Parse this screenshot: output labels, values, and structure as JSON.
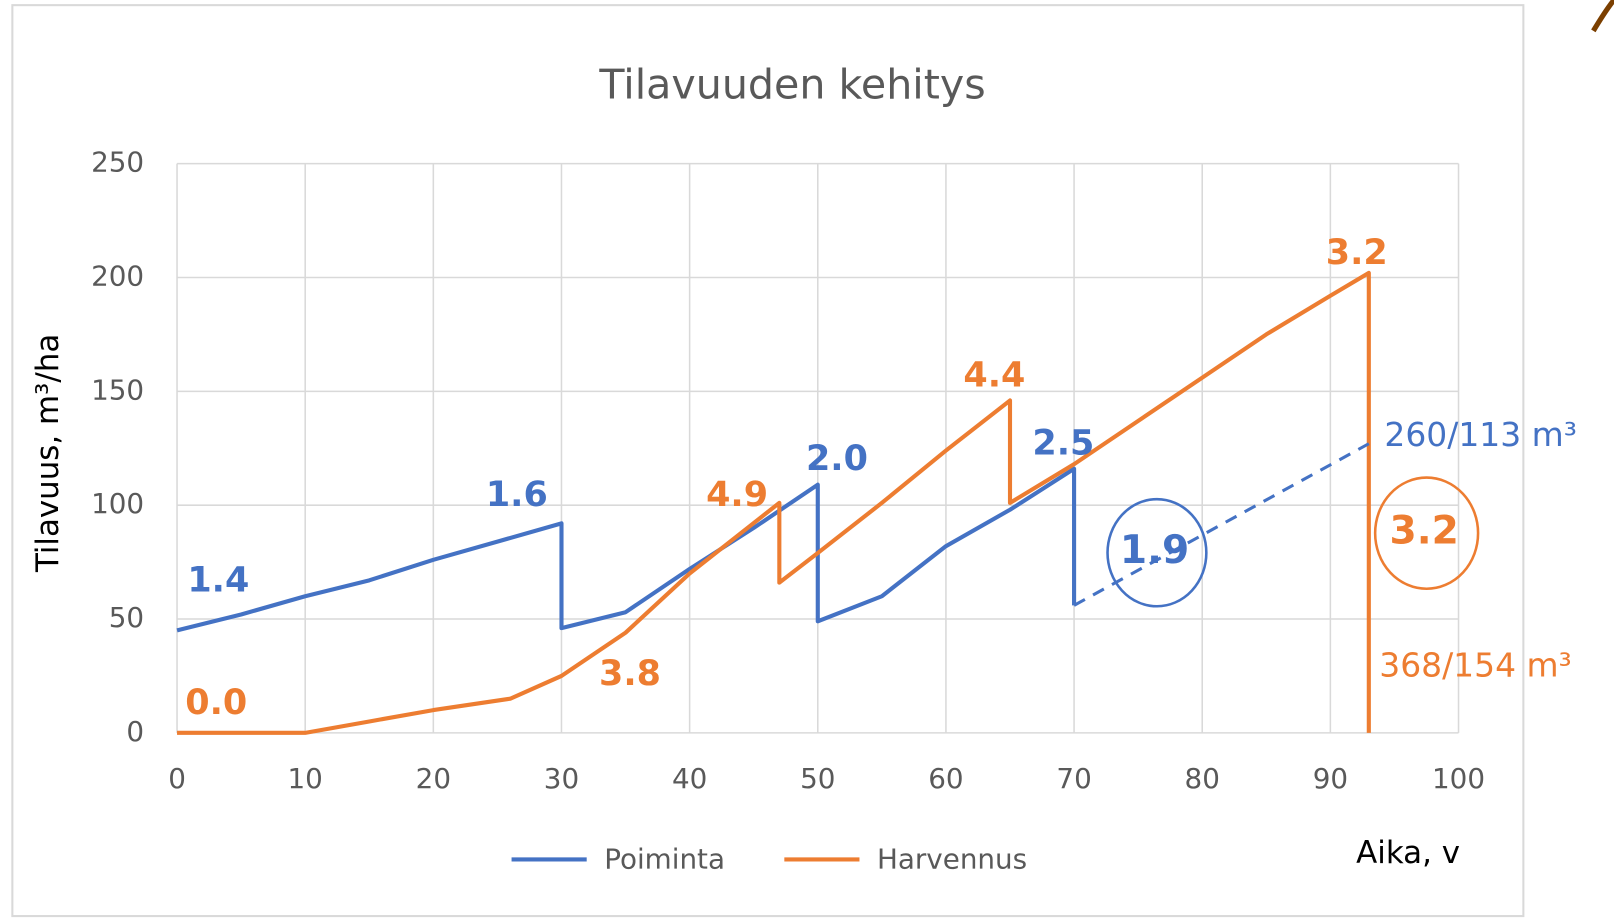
{
  "chart_data": {
    "type": "line",
    "title": "Tilavuuden kehitys",
    "y_label": "Tilavuus, m³/ha",
    "x_label": "Aika, v",
    "xlim": [
      0,
      100
    ],
    "xticks": [
      0,
      10,
      20,
      30,
      40,
      50,
      60,
      70,
      80,
      90,
      100
    ],
    "ylim": [
      0,
      250
    ],
    "yticks": [
      0,
      50,
      100,
      150,
      200,
      250
    ],
    "grid": true,
    "legend": "bottom",
    "series": [
      {
        "name": "Poiminta",
        "color": "#4472c4",
        "x": [
          0,
          5,
          10,
          15,
          20,
          25,
          30,
          30,
          35,
          40,
          45,
          50,
          50,
          55,
          60,
          65,
          70,
          70
        ],
        "values": [
          45,
          52,
          60,
          67,
          76,
          84,
          92,
          46,
          53,
          72,
          90,
          109,
          49,
          60,
          82,
          98,
          116,
          56
        ]
      },
      {
        "name": "Harvennus",
        "color": "#ed7d31",
        "x": [
          0,
          10,
          15,
          20,
          26,
          30,
          35,
          40,
          47,
          47,
          50,
          55,
          60,
          65,
          65,
          70,
          75,
          80,
          85,
          90,
          93,
          93
        ],
        "values": [
          0,
          0,
          5,
          10,
          15,
          25,
          44,
          70,
          101,
          66,
          79,
          101,
          124,
          146,
          101,
          118,
          137,
          156,
          175,
          192,
          202,
          0
        ]
      }
    ],
    "dashed_line": {
      "color": "#4472c4",
      "x": [
        70,
        93
      ],
      "values": [
        56,
        127
      ]
    },
    "annotations": [
      {
        "text": "1.4",
        "color": "#4472c4"
      },
      {
        "text": "1.6",
        "color": "#4472c4"
      },
      {
        "text": "2.0",
        "color": "#4472c4"
      },
      {
        "text": "2.5",
        "color": "#4472c4"
      },
      {
        "text": "1.9",
        "color": "#4472c4"
      },
      {
        "text": "260/113 m³",
        "color": "#4472c4"
      },
      {
        "text": "0.0",
        "color": "#ed7d31"
      },
      {
        "text": "3.8",
        "color": "#ed7d31"
      },
      {
        "text": "4.9",
        "color": "#ed7d31"
      },
      {
        "text": "4.4",
        "color": "#ed7d31"
      },
      {
        "text": "3.2",
        "color": "#ed7d31"
      },
      {
        "text": "3.2",
        "color": "#ed7d31"
      },
      {
        "text": "368/154 m³",
        "color": "#ed7d31"
      }
    ]
  }
}
